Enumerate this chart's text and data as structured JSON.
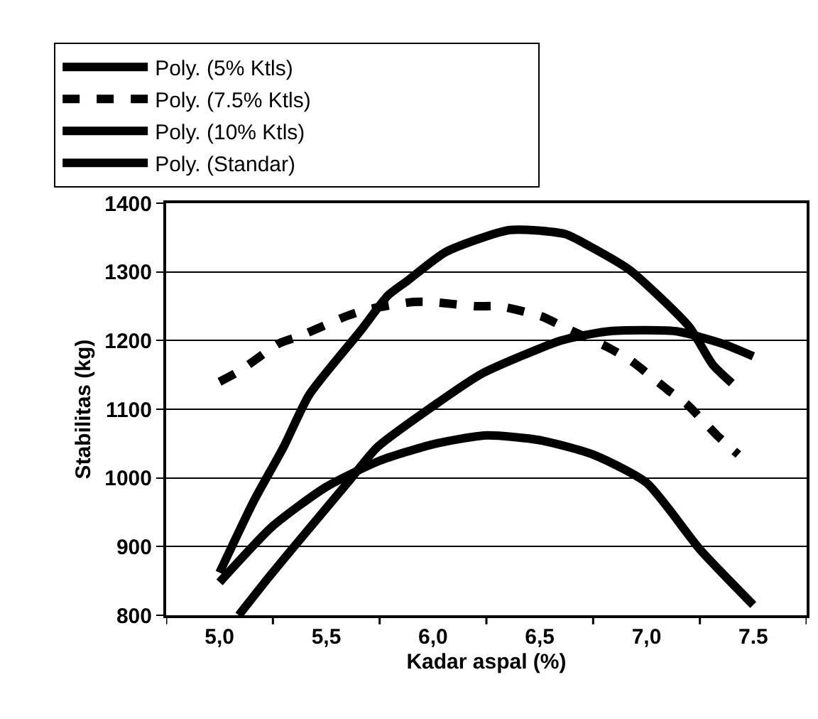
{
  "chart_data": {
    "type": "line",
    "xlabel": "Kadar aspal (%)",
    "ylabel": "Stabilitas (kg)",
    "xlim": [
      4.75,
      7.75
    ],
    "xticks": [
      {
        "value": 4.75,
        "label": null
      },
      {
        "value": 5.0,
        "label": "5,0"
      },
      {
        "value": 5.25,
        "label": null
      },
      {
        "value": 5.5,
        "label": "5,5"
      },
      {
        "value": 5.75,
        "label": null
      },
      {
        "value": 6.0,
        "label": "6,0"
      },
      {
        "value": 6.25,
        "label": null
      },
      {
        "value": 6.5,
        "label": "6,5"
      },
      {
        "value": 6.75,
        "label": null
      },
      {
        "value": 7.0,
        "label": "7,0"
      },
      {
        "value": 7.25,
        "label": null
      },
      {
        "value": 7.5,
        "label": "7.5"
      },
      {
        "value": 7.75,
        "label": null
      }
    ],
    "ylim": [
      800,
      1400
    ],
    "yticks": [
      800,
      900,
      1000,
      1100,
      1200,
      1300,
      1400
    ],
    "grid": "y",
    "legend": "top",
    "marker": "none",
    "series": [
      {
        "name": "Poly. (5% Ktls)",
        "color": "#000000",
        "line_style": "solid",
        "x": [
          5.0,
          5.16,
          5.3,
          5.42,
          5.66,
          5.79,
          5.88,
          6.06,
          6.36,
          6.62,
          6.73,
          6.92,
          7.2,
          7.31,
          7.4
        ],
        "values": [
          862,
          966,
          1045,
          1121,
          1214,
          1266,
          1287,
          1329,
          1361,
          1355,
          1338,
          1303,
          1220,
          1165,
          1138
        ]
      },
      {
        "name": "Poly. (7.5% Ktls)",
        "color": "#000000",
        "line_style": "dashed",
        "x": [
          5.0,
          5.09,
          5.28,
          5.38,
          5.59,
          5.69,
          5.9,
          6.0,
          6.2,
          6.31,
          6.51,
          6.61,
          6.82,
          6.93,
          7.1,
          7.19,
          7.33,
          7.43
        ],
        "values": [
          1140,
          1155,
          1196,
          1207,
          1235,
          1245,
          1256,
          1256,
          1250,
          1250,
          1235,
          1220,
          1190,
          1170,
          1128,
          1107,
          1062,
          1034
        ]
      },
      {
        "name": "Poly. (10% Ktls)",
        "color": "#000000",
        "line_style": "solid",
        "x": [
          5.09,
          5.23,
          5.36,
          5.6,
          5.74,
          6.03,
          6.23,
          6.6,
          6.81,
          7.0,
          7.15,
          7.36,
          7.5
        ],
        "values": [
          800,
          855,
          904,
          993,
          1045,
          1111,
          1152,
          1200,
          1213,
          1215,
          1213,
          1195,
          1177
        ]
      },
      {
        "name": "Poly. (Standar)",
        "color": "#000000",
        "line_style": "solid",
        "x": [
          5.0,
          5.25,
          5.5,
          5.75,
          6.0,
          6.25,
          6.5,
          6.75,
          7.0,
          7.25,
          7.5
        ],
        "values": [
          848,
          930,
          987,
          1025,
          1049,
          1062,
          1055,
          1034,
          993,
          896,
          815
        ]
      }
    ]
  }
}
